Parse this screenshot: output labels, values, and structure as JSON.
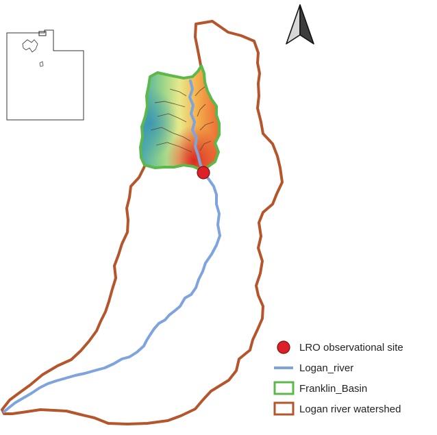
{
  "legend": {
    "site_label": "LRO observational site",
    "river_label": "Logan_river",
    "basin_label": "Franklin_Basin",
    "watershed_label": "Logan river watershed"
  },
  "colors": {
    "watershed": "#b5552b",
    "basin": "#5cb84a",
    "river": "#7ea3df",
    "site_fill": "#dd2027",
    "site_stroke": "#7a1010",
    "inset_outline": "#333333",
    "north_arrow_dark": "#3a3a3a",
    "north_arrow_light": "#d4d4d4"
  },
  "icons": {
    "north_arrow": "north-arrow-icon",
    "inset": "utah-inset-map"
  }
}
